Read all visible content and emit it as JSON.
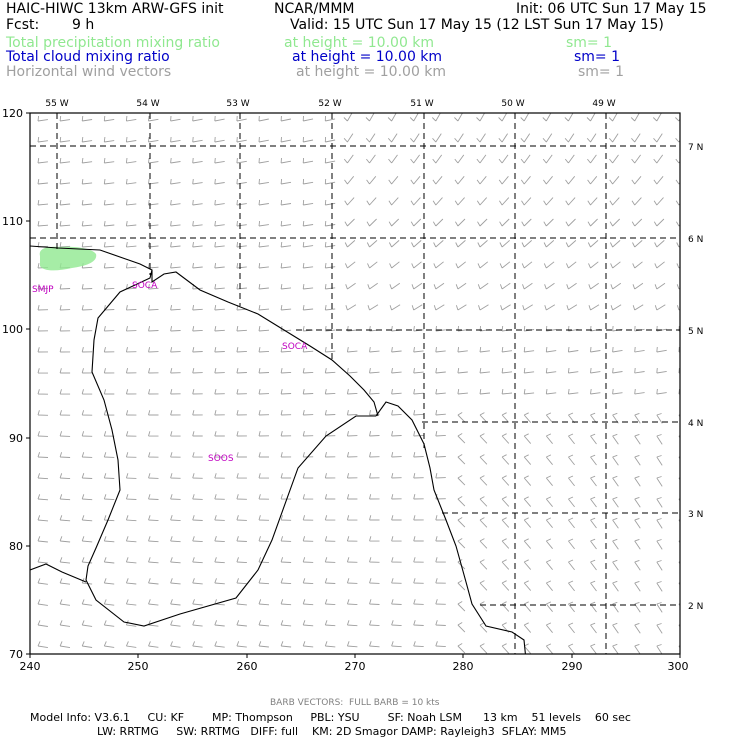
{
  "header": {
    "title_left": "HAIC-HIWC 13km ARW-GFS init",
    "title_center": "NCAR/MMM",
    "title_right": "Init: 06 UTC Sun 17 May 15",
    "fcst_label": "Fcst:",
    "fcst_value": "9 h",
    "valid": "Valid: 15 UTC Sun 17 May 15 (12 LST Sun 17 May 15)"
  },
  "fields": [
    {
      "name": "Total precipitation mixing ratio",
      "height": "at height = 10.00 km",
      "sm": "sm= 1",
      "color": "#90e890"
    },
    {
      "name": "Total cloud mixing ratio",
      "height": "at height = 10.00 km",
      "sm": "sm= 1",
      "color": "#0000c8"
    },
    {
      "name": "Horizontal wind vectors",
      "height": "at height = 10.00 km",
      "sm": "sm= 1",
      "color": "#a0a0a0"
    }
  ],
  "map": {
    "x_ticks": [
      "240",
      "250",
      "260",
      "270",
      "280",
      "290",
      "300"
    ],
    "y_ticks": [
      "70",
      "80",
      "90",
      "100",
      "110",
      "120"
    ],
    "lon_labels": [
      "55 W",
      "54 W",
      "53 W",
      "52 W",
      "51 W",
      "50 W",
      "49 W"
    ],
    "lat_labels": [
      "7 N",
      "6 N",
      "5 N",
      "4 N",
      "3 N",
      "2 N"
    ],
    "stations": [
      "SMJP",
      "SOCA",
      "SOCA",
      "SOOS"
    ],
    "coast_color": "#000000",
    "station_color": "#c000c0",
    "precip_color": "#90e890"
  },
  "footer": {
    "barb_note": "BARB VECTORS:  FULL BARB = 10 kts",
    "line1": "Model Info: V3.6.1     CU: KF        MP: Thompson     PBL: YSU        SF: Noah LSM      13 km    51 levels    60 sec",
    "line2": "LW: RRTMG     SW: RRTMG   DIFF: full    KM: 2D Smagor DAMP: Rayleigh3  SFLAY: MM5"
  }
}
